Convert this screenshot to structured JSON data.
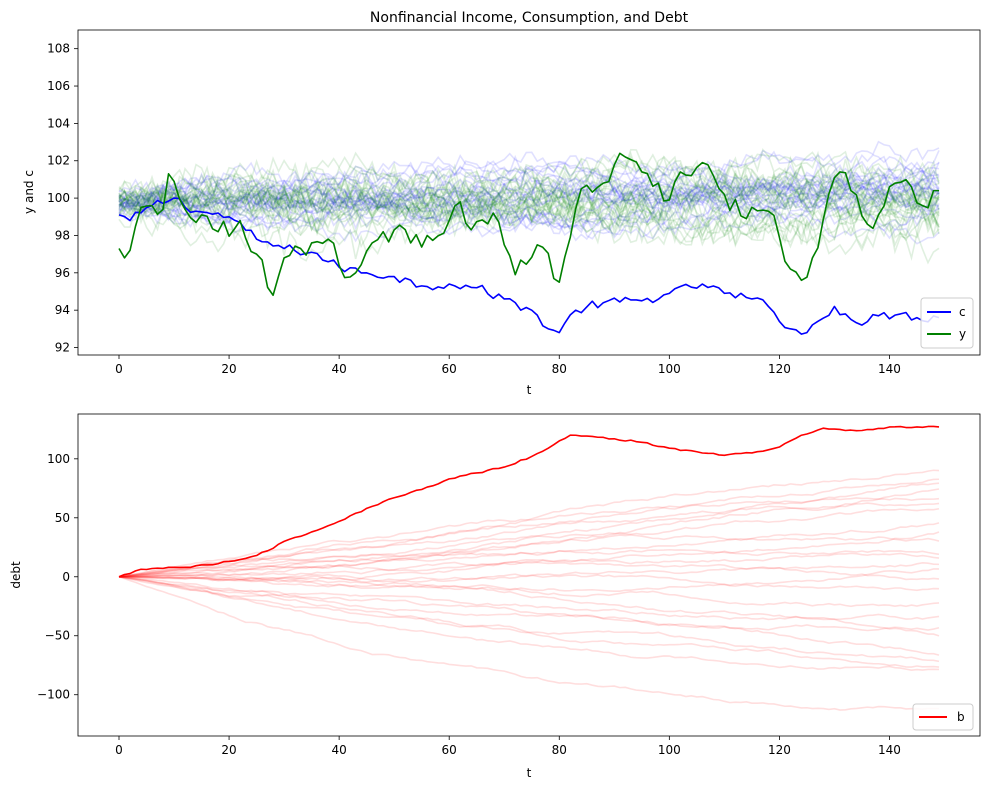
{
  "chart_data": [
    {
      "type": "line",
      "title": "Nonfinancial Income, Consumption, and Debt",
      "xlabel": "t",
      "ylabel": "y and c",
      "xlim": [
        -7.45,
        156.45
      ],
      "ylim": [
        91.6,
        109.0
      ],
      "xticks": [
        0,
        20,
        40,
        60,
        80,
        100,
        120,
        140
      ],
      "xtick_labels": [
        "0",
        "20",
        "40",
        "60",
        "80",
        "100",
        "120",
        "140"
      ],
      "yticks": [
        92,
        94,
        96,
        98,
        100,
        102,
        104,
        106,
        108
      ],
      "ytick_labels": [
        "92",
        "94",
        "96",
        "98",
        "100",
        "102",
        "104",
        "106",
        "108"
      ],
      "legend": {
        "position": "bottom-right",
        "entries": [
          {
            "label": "c",
            "color": "#0000ff"
          },
          {
            "label": "y",
            "color": "#008000"
          }
        ]
      },
      "background_paths": {
        "c_count": 25,
        "y_count": 25,
        "c_color": "#0000ff",
        "y_color": "#008000",
        "opacity": 0.12,
        "c_spread": 2.2,
        "y_spread": 3.0
      },
      "series": [
        {
          "name": "c",
          "color": "#0000ff",
          "x_start": 0,
          "keypoints": [
            [
              0,
              99.1
            ],
            [
              2,
              98.8
            ],
            [
              6,
              99.6
            ],
            [
              10,
              100.0
            ],
            [
              14,
              99.3
            ],
            [
              20,
              99.0
            ],
            [
              25,
              97.8
            ],
            [
              30,
              97.3
            ],
            [
              35,
              97.1
            ],
            [
              40,
              96.3
            ],
            [
              45,
              96.0
            ],
            [
              50,
              95.8
            ],
            [
              55,
              95.3
            ],
            [
              60,
              95.4
            ],
            [
              65,
              95.2
            ],
            [
              70,
              94.6
            ],
            [
              75,
              94.0
            ],
            [
              78,
              93.0
            ],
            [
              80,
              92.8
            ],
            [
              83,
              94.0
            ],
            [
              88,
              94.4
            ],
            [
              95,
              94.5
            ],
            [
              100,
              94.9
            ],
            [
              106,
              95.4
            ],
            [
              110,
              94.9
            ],
            [
              115,
              94.6
            ],
            [
              118,
              94.2
            ],
            [
              122,
              93.0
            ],
            [
              125,
              92.8
            ],
            [
              130,
              94.2
            ],
            [
              132,
              93.8
            ],
            [
              135,
              93.2
            ],
            [
              138,
              93.7
            ],
            [
              142,
              93.8
            ],
            [
              145,
              93.6
            ],
            [
              149,
              93.6
            ]
          ],
          "noise": 0.25,
          "length": 150
        },
        {
          "name": "y",
          "color": "#008000",
          "x_start": 0,
          "keypoints": [
            [
              0,
              97.3
            ],
            [
              1,
              96.8
            ],
            [
              2,
              97.2
            ],
            [
              4,
              99.5
            ],
            [
              6,
              99.6
            ],
            [
              8,
              99.4
            ],
            [
              9,
              101.3
            ],
            [
              10,
              100.9
            ],
            [
              12,
              99.4
            ],
            [
              15,
              99.1
            ],
            [
              18,
              98.2
            ],
            [
              22,
              98.8
            ],
            [
              25,
              97.0
            ],
            [
              28,
              94.8
            ],
            [
              30,
              96.8
            ],
            [
              33,
              97.3
            ],
            [
              35,
              97.6
            ],
            [
              38,
              97.8
            ],
            [
              40,
              96.4
            ],
            [
              43,
              96.0
            ],
            [
              46,
              97.6
            ],
            [
              50,
              98.3
            ],
            [
              53,
              97.6
            ],
            [
              56,
              98.0
            ],
            [
              60,
              98.8
            ],
            [
              62,
              99.8
            ],
            [
              64,
              98.3
            ],
            [
              68,
              99.2
            ],
            [
              70,
              97.5
            ],
            [
              72,
              95.9
            ],
            [
              76,
              97.5
            ],
            [
              80,
              95.5
            ],
            [
              82,
              97.9
            ],
            [
              84,
              100.5
            ],
            [
              88,
              100.8
            ],
            [
              92,
              102.2
            ],
            [
              95,
              101.4
            ],
            [
              98,
              100.8
            ],
            [
              100,
              99.9
            ],
            [
              102,
              101.4
            ],
            [
              104,
              101.2
            ],
            [
              106,
              101.9
            ],
            [
              108,
              101.2
            ],
            [
              110,
              100.2
            ],
            [
              114,
              98.9
            ],
            [
              118,
              99.3
            ],
            [
              120,
              97.9
            ],
            [
              122,
              96.2
            ],
            [
              124,
              95.6
            ],
            [
              126,
              96.8
            ],
            [
              128,
              98.9
            ],
            [
              131,
              101.4
            ],
            [
              133,
              100.4
            ],
            [
              136,
              98.6
            ],
            [
              138,
              99.1
            ],
            [
              141,
              100.8
            ],
            [
              144,
              100.6
            ],
            [
              146,
              99.6
            ],
            [
              148,
              100.4
            ],
            [
              149,
              100.4
            ]
          ],
          "noise": 0.55,
          "length": 150
        }
      ]
    },
    {
      "type": "line",
      "title": "",
      "xlabel": "t",
      "ylabel": "debt",
      "xlim": [
        -7.45,
        156.45
      ],
      "ylim": [
        -135.0,
        138.0
      ],
      "xticks": [
        0,
        20,
        40,
        60,
        80,
        100,
        120,
        140
      ],
      "xtick_labels": [
        "0",
        "20",
        "40",
        "60",
        "80",
        "100",
        "120",
        "140"
      ],
      "yticks": [
        -100,
        -50,
        0,
        50,
        100
      ],
      "ytick_labels": [
        "−100",
        "−50",
        "0",
        "50",
        "100"
      ],
      "legend": {
        "position": "bottom-right",
        "entries": [
          {
            "label": "b",
            "color": "#ff0000"
          }
        ]
      },
      "background_paths": {
        "count": 25,
        "color": "#ff0000",
        "opacity": 0.13,
        "end_values": [
          90,
          86,
          80,
          77,
          70,
          63,
          55,
          48,
          40,
          30,
          22,
          15,
          10,
          3,
          -5,
          -12,
          -22,
          -35,
          -40,
          -47,
          -62,
          -70,
          -72,
          -75,
          -112
        ]
      },
      "series": [
        {
          "name": "b",
          "color": "#ff0000",
          "x_start": 0,
          "keypoints": [
            [
              0,
              0
            ],
            [
              3,
              5
            ],
            [
              6,
              7
            ],
            [
              9,
              8
            ],
            [
              12,
              8
            ],
            [
              16,
              10
            ],
            [
              20,
              13
            ],
            [
              24,
              17
            ],
            [
              27,
              22
            ],
            [
              30,
              30
            ],
            [
              35,
              38
            ],
            [
              40,
              47
            ],
            [
              45,
              58
            ],
            [
              50,
              67
            ],
            [
              55,
              74
            ],
            [
              60,
              83
            ],
            [
              65,
              88
            ],
            [
              70,
              93
            ],
            [
              75,
              102
            ],
            [
              79,
              112
            ],
            [
              82,
              120
            ],
            [
              86,
              119
            ],
            [
              90,
              117
            ],
            [
              95,
              114
            ],
            [
              100,
              109
            ],
            [
              105,
              106
            ],
            [
              110,
              103
            ],
            [
              115,
              105
            ],
            [
              120,
              110
            ],
            [
              124,
              120
            ],
            [
              128,
              126
            ],
            [
              132,
              124
            ],
            [
              135,
              124
            ],
            [
              140,
              127
            ],
            [
              145,
              127
            ],
            [
              149,
              127
            ]
          ],
          "noise": 0.7,
          "length": 150
        }
      ]
    }
  ]
}
